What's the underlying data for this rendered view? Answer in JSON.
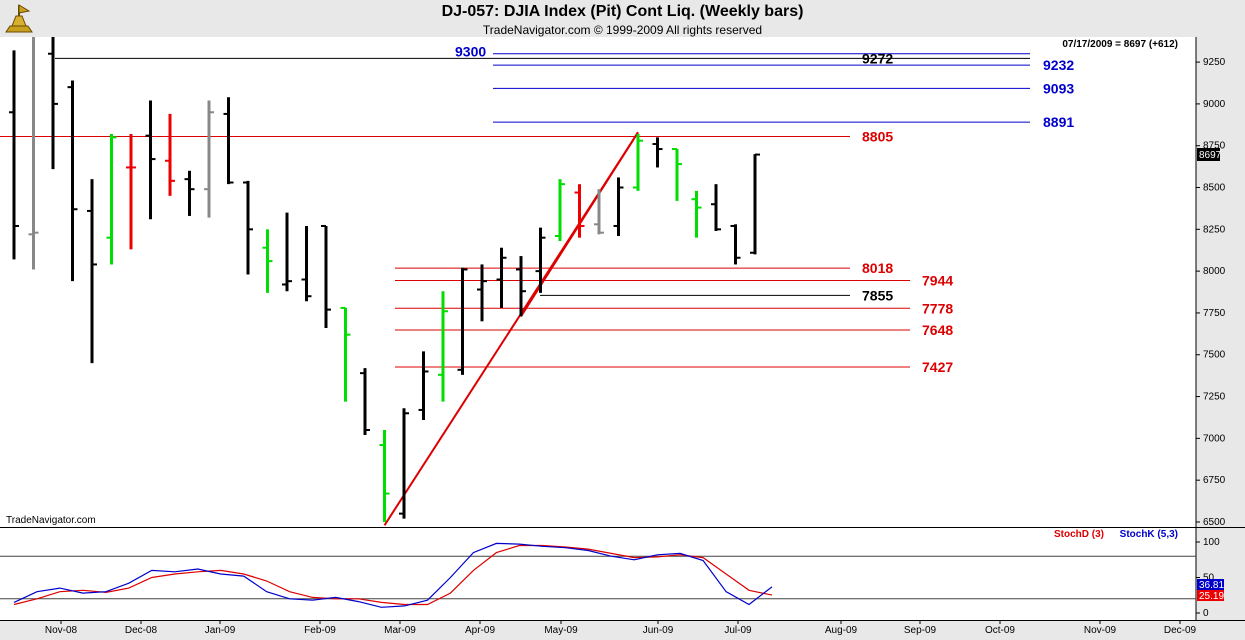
{
  "title": "DJ-057:  DJIA Index (Pit) Cont Liq.  (Weekly bars)",
  "subtitle": "TradeNavigator.com © 1999-2009 All rights reserved",
  "watermark": "TradeNavigator.com",
  "colors": {
    "up": "#00dd00",
    "down": "#ee0000",
    "neutral": "#888888",
    "bar": "#000000",
    "blue": "#0000cc",
    "red": "#dd0000"
  },
  "chart_data": {
    "type": "bar",
    "bar_style": "ohlc",
    "info_text": "07/17/2009 = 8697 (+612)",
    "last_price_label": "8697",
    "price_axis": {
      "ylim": [
        6470,
        9400
      ],
      "ticks": [
        6500,
        6750,
        7000,
        7250,
        7500,
        7750,
        8000,
        8250,
        8500,
        8750,
        9000,
        9250
      ]
    },
    "x_labels": [
      "Nov-08",
      "Dec-08",
      "Jan-09",
      "Feb-09",
      "Mar-09",
      "Apr-09",
      "May-09",
      "Jun-09",
      "Jul-09",
      "Aug-09",
      "Sep-09",
      "Oct-09",
      "Nov-09",
      "Dec-09"
    ],
    "bars": [
      {
        "o": 8950,
        "h": 9320,
        "l": 8070,
        "c": 8270,
        "color": "black"
      },
      {
        "o": 8220,
        "h": 9400,
        "l": 8010,
        "c": 8230,
        "color": "gray"
      },
      {
        "o": 9300,
        "h": 9400,
        "l": 8610,
        "c": 9000,
        "color": "black"
      },
      {
        "o": 9100,
        "h": 9140,
        "l": 7940,
        "c": 8370,
        "color": "black"
      },
      {
        "o": 8360,
        "h": 8550,
        "l": 7450,
        "c": 8040,
        "color": "black"
      },
      {
        "o": 8200,
        "h": 8820,
        "l": 8040,
        "c": 8800,
        "color": "green"
      },
      {
        "o": 8620,
        "h": 8820,
        "l": 8130,
        "c": 8620,
        "color": "red"
      },
      {
        "o": 8810,
        "h": 9020,
        "l": 8310,
        "c": 8670,
        "color": "black"
      },
      {
        "o": 8660,
        "h": 8940,
        "l": 8450,
        "c": 8540,
        "color": "red"
      },
      {
        "o": 8550,
        "h": 8600,
        "l": 8330,
        "c": 8490,
        "color": "black"
      },
      {
        "o": 8490,
        "h": 9020,
        "l": 8320,
        "c": 8950,
        "color": "gray"
      },
      {
        "o": 8940,
        "h": 9040,
        "l": 8520,
        "c": 8530,
        "color": "black"
      },
      {
        "o": 8530,
        "h": 8540,
        "l": 7980,
        "c": 8250,
        "color": "black"
      },
      {
        "o": 8140,
        "h": 8250,
        "l": 7870,
        "c": 8060,
        "color": "green"
      },
      {
        "o": 7920,
        "h": 8350,
        "l": 7880,
        "c": 7940,
        "color": "black"
      },
      {
        "o": 7950,
        "h": 8270,
        "l": 7820,
        "c": 7850,
        "color": "black"
      },
      {
        "o": 8270,
        "h": 8270,
        "l": 7660,
        "c": 7770,
        "color": "black"
      },
      {
        "o": 7780,
        "h": 7780,
        "l": 7220,
        "c": 7620,
        "color": "green"
      },
      {
        "o": 7390,
        "h": 7420,
        "l": 7020,
        "c": 7050,
        "color": "black"
      },
      {
        "o": 6960,
        "h": 7050,
        "l": 6500,
        "c": 6670,
        "color": "green"
      },
      {
        "o": 6550,
        "h": 7180,
        "l": 6520,
        "c": 7150,
        "color": "black"
      },
      {
        "o": 7170,
        "h": 7520,
        "l": 7110,
        "c": 7400,
        "color": "black"
      },
      {
        "o": 7380,
        "h": 7880,
        "l": 7220,
        "c": 7760,
        "color": "green"
      },
      {
        "o": 7410,
        "h": 8020,
        "l": 7380,
        "c": 8010,
        "color": "black"
      },
      {
        "o": 7890,
        "h": 8040,
        "l": 7700,
        "c": 7940,
        "color": "black"
      },
      {
        "o": 7950,
        "h": 8140,
        "l": 7780,
        "c": 8080,
        "color": "black"
      },
      {
        "o": 8010,
        "h": 8090,
        "l": 7730,
        "c": 7880,
        "color": "black"
      },
      {
        "o": 8000,
        "h": 8260,
        "l": 7870,
        "c": 8200,
        "color": "black"
      },
      {
        "o": 8210,
        "h": 8550,
        "l": 8180,
        "c": 8520,
        "color": "green"
      },
      {
        "o": 8470,
        "h": 8520,
        "l": 8200,
        "c": 8270,
        "color": "red"
      },
      {
        "o": 8280,
        "h": 8490,
        "l": 8220,
        "c": 8230,
        "color": "gray"
      },
      {
        "o": 8270,
        "h": 8560,
        "l": 8210,
        "c": 8500,
        "color": "black"
      },
      {
        "o": 8500,
        "h": 8820,
        "l": 8480,
        "c": 8780,
        "color": "green"
      },
      {
        "o": 8760,
        "h": 8800,
        "l": 8620,
        "c": 8730,
        "color": "black"
      },
      {
        "o": 8730,
        "h": 8730,
        "l": 8420,
        "c": 8640,
        "color": "green"
      },
      {
        "o": 8430,
        "h": 8480,
        "l": 8200,
        "c": 8380,
        "color": "green"
      },
      {
        "o": 8400,
        "h": 8520,
        "l": 8240,
        "c": 8250,
        "color": "black"
      },
      {
        "o": 8270,
        "h": 8280,
        "l": 8040,
        "c": 8080,
        "color": "black"
      },
      {
        "o": 8110,
        "h": 8700,
        "l": 8100,
        "c": 8697,
        "color": "black"
      }
    ],
    "levels": [
      {
        "value": 9300,
        "label": "9300",
        "color": "blue"
      },
      {
        "value": 9272,
        "label": "9272",
        "color": "black"
      },
      {
        "value": 9232,
        "label": "9232",
        "color": "blue"
      },
      {
        "value": 9093,
        "label": "9093",
        "color": "blue"
      },
      {
        "value": 8891,
        "label": "8891",
        "color": "blue"
      },
      {
        "value": 8805,
        "label": "8805",
        "color": "red"
      },
      {
        "value": 8018,
        "label": "8018",
        "color": "red"
      },
      {
        "value": 7944,
        "label": "7944",
        "color": "red"
      },
      {
        "value": 7855,
        "label": "7855",
        "color": "black"
      },
      {
        "value": 7778,
        "label": "7778",
        "color": "red"
      },
      {
        "value": 7648,
        "label": "7648",
        "color": "red"
      },
      {
        "value": 7427,
        "label": "7427",
        "color": "red"
      }
    ],
    "trendlines": [
      {
        "from_bar": 19,
        "from_price": 6480,
        "to_bar": 32,
        "to_price": 8830
      },
      {
        "from_bar": 26,
        "from_price": 7730,
        "to_bar": 32,
        "to_price": 8830
      }
    ],
    "stochastic": {
      "legend_d": "StochD (3)",
      "legend_k": "StochK (5,3)",
      "axis_ticks": [
        0,
        50,
        100
      ],
      "guides": [
        20,
        80
      ],
      "last_k_label": "36.81",
      "last_d_label": "25.19",
      "k": [
        15,
        30,
        35,
        28,
        30,
        42,
        60,
        58,
        62,
        55,
        52,
        30,
        20,
        18,
        22,
        16,
        8,
        10,
        18,
        50,
        85,
        98,
        97,
        94,
        92,
        88,
        80,
        75,
        82,
        84,
        74,
        30,
        12,
        36.81
      ],
      "d": [
        12,
        20,
        30,
        32,
        29,
        35,
        50,
        55,
        58,
        60,
        55,
        45,
        30,
        22,
        20,
        20,
        15,
        12,
        12,
        28,
        60,
        85,
        95,
        95,
        93,
        90,
        84,
        78,
        79,
        82,
        78,
        55,
        32,
        25.19
      ]
    }
  }
}
